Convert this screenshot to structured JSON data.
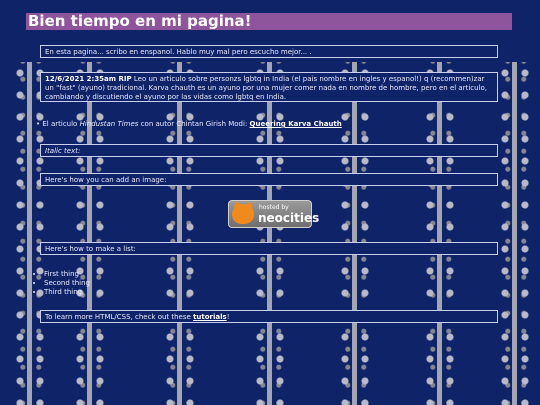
{
  "header": {
    "title": "Bien tiempo en mi pagina!"
  },
  "intro": {
    "text": "En esta pagina... scribo en enspanol. Hablo muy mal pero escucho mejor... ."
  },
  "post": {
    "timestamp": "12/6/2021 2:35am RIP",
    "body": "Leo un articulo sobre personzs lgbtq in India (el pais nombre en ingles y espanol!) q (recommen)zar un \"fast\" (ayuno) tradicional. Karva chauth es un ayuno por una mujer comer nada en nombre de hombre, pero en el articulo, cambiando y discutiendo el ayuno por las vidas como lgbtq en India."
  },
  "article_line": {
    "prefix": "El articulo",
    "source": "Hindustan Times",
    "middle": "con autor Chintan Girish Modi:",
    "link": "Queering Karva Chauth"
  },
  "italic_box": {
    "text": "Italic text:"
  },
  "image_box": {
    "text": "Here's how you can add an image:"
  },
  "badge": {
    "small": "hosted by",
    "big": "neocities",
    "accent": "#f08a1c"
  },
  "list_box": {
    "text": "Here's how to make a list:"
  },
  "list_items": [
    "First thing",
    "Second thing",
    "Third thing"
  ],
  "footer_box": {
    "prefix": "To learn more HTML/CSS, check out these",
    "link": "tutorials",
    "suffix": "!"
  },
  "colors": {
    "background": "#0f2369",
    "header": "#8f559c"
  }
}
